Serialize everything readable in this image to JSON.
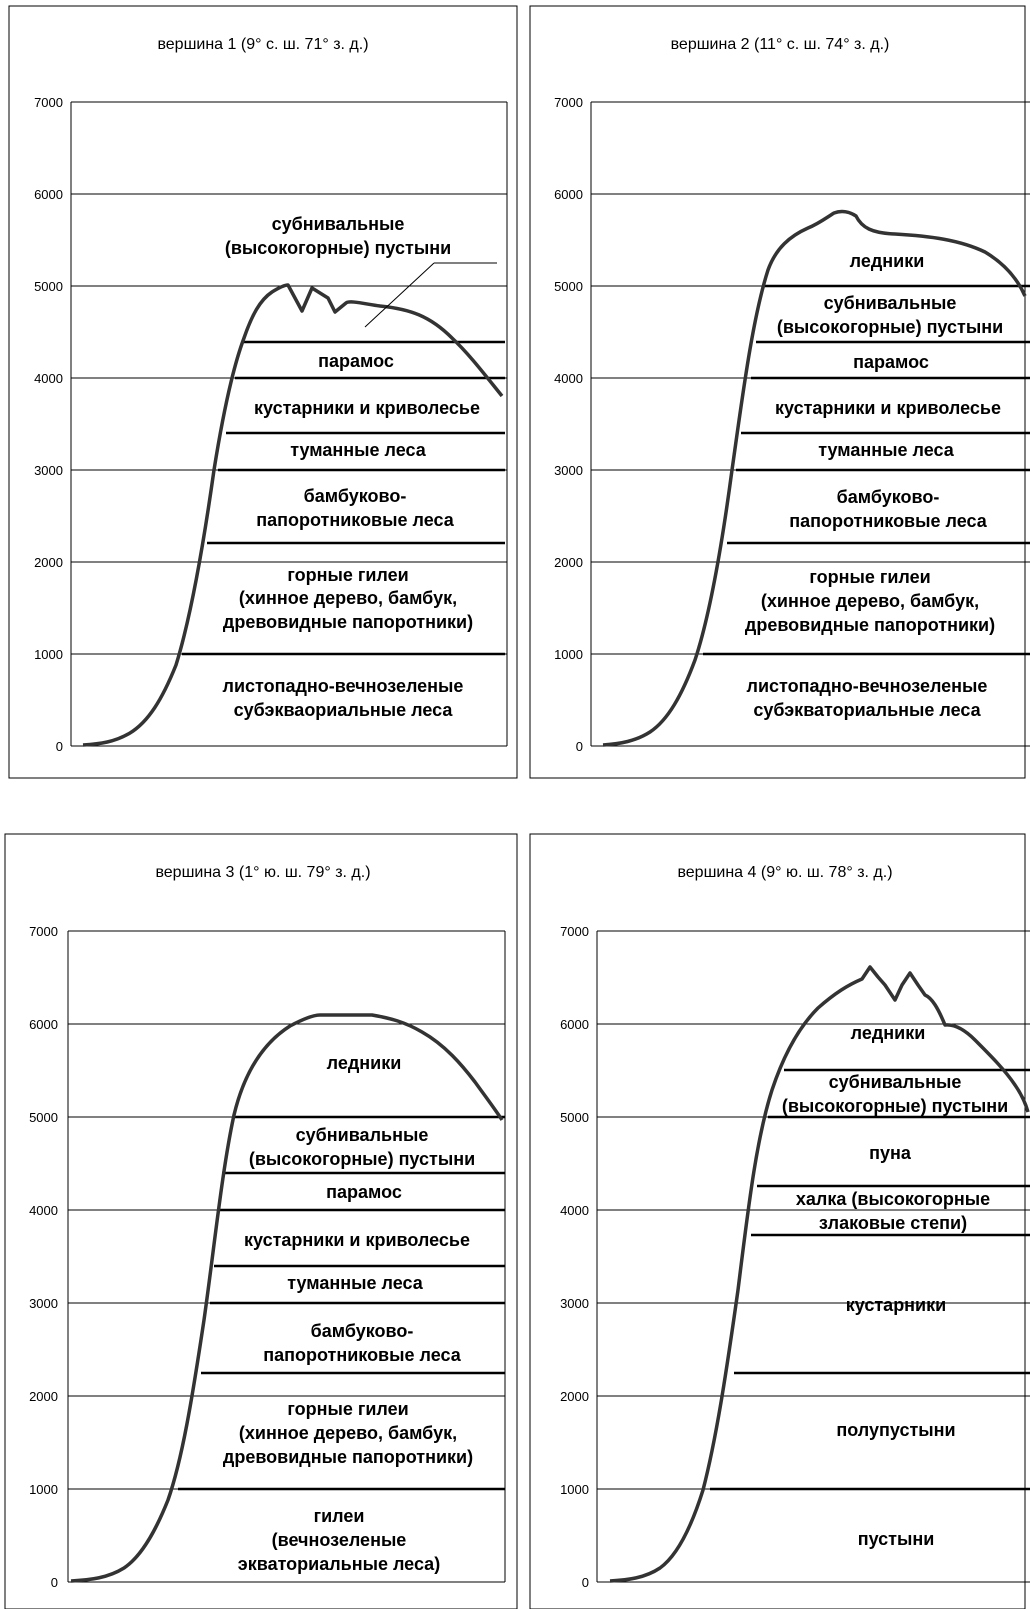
{
  "y_axis": {
    "min": 0,
    "max": 7000,
    "ticks": [
      "0",
      "1000",
      "2000",
      "3000",
      "4000",
      "5000",
      "6000",
      "7000"
    ]
  },
  "panels": [
    {
      "title": "вершина 1 (9° с. ш. 71° з. д.)",
      "zones": [
        {
          "lines": [
            "субнивальные",
            "(высокогорные) пустыни"
          ]
        },
        {
          "lines": [
            "парамос"
          ]
        },
        {
          "lines": [
            "кустарники и криволесье"
          ]
        },
        {
          "lines": [
            "туманные леса"
          ]
        },
        {
          "lines": [
            "бамбуково-",
            "папоротниковые леса"
          ]
        },
        {
          "lines": [
            "горные гилеи",
            "(хинное дерево, бамбук,",
            "древовидные папоротники)"
          ]
        },
        {
          "lines": [
            "листопадно-вечнозеленые",
            "субэкваориальные леса"
          ]
        }
      ]
    },
    {
      "title": "вершина 2 (11° с. ш. 74° з. д.)",
      "zones": [
        {
          "lines": [
            "ледники"
          ]
        },
        {
          "lines": [
            "субнивальные",
            "(высокогорные) пустыни"
          ]
        },
        {
          "lines": [
            "парамос"
          ]
        },
        {
          "lines": [
            "кустарники и криволесье"
          ]
        },
        {
          "lines": [
            "туманные леса"
          ]
        },
        {
          "lines": [
            "бамбуково-",
            "папоротниковые леса"
          ]
        },
        {
          "lines": [
            "горные гилеи",
            "(хинное дерево, бамбук,",
            "древовидные папоротники)"
          ]
        },
        {
          "lines": [
            "листопадно-вечнозеленые",
            "субэкваториальные леса"
          ]
        }
      ]
    },
    {
      "title": "вершина 3 (1° ю. ш. 79° з. д.)",
      "zones": [
        {
          "lines": [
            "ледники"
          ]
        },
        {
          "lines": [
            "субнивальные",
            "(высокогорные) пустыни"
          ]
        },
        {
          "lines": [
            "парамос"
          ]
        },
        {
          "lines": [
            "кустарники и криволесье"
          ]
        },
        {
          "lines": [
            "туманные леса"
          ]
        },
        {
          "lines": [
            "бамбуково-",
            "папоротниковые леса"
          ]
        },
        {
          "lines": [
            "горные гилеи",
            "(хинное дерево, бамбук,",
            "древовидные папоротники)"
          ]
        },
        {
          "lines": [
            "гилеи",
            "(вечнозеленые",
            "экваториальные леса)"
          ]
        }
      ]
    },
    {
      "title": "вершина 4 (9° ю. ш. 78° з. д.)",
      "zones": [
        {
          "lines": [
            "ледники"
          ]
        },
        {
          "lines": [
            "субнивальные",
            "(высокогорные) пустыни"
          ]
        },
        {
          "lines": [
            "пуна"
          ]
        },
        {
          "lines": [
            "халка (высокогорные",
            "злаковые степи)"
          ]
        },
        {
          "lines": [
            "кустарники"
          ]
        },
        {
          "lines": [
            "полупустыни"
          ]
        },
        {
          "lines": [
            "пустыни"
          ]
        }
      ]
    }
  ]
}
